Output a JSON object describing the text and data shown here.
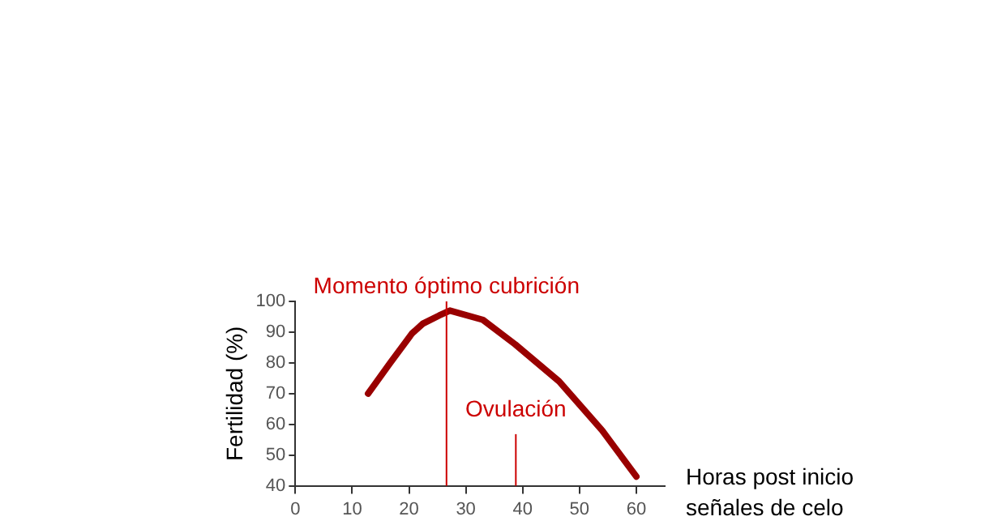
{
  "chart_data": {
    "type": "line",
    "xlabel": "Horas post inicio señales de celo",
    "ylabel": "Fertilidad (%)",
    "series": [
      {
        "color": "#990000",
        "x": [
          12.8,
          16.7,
          20.5,
          22.4,
          25.3,
          27.2,
          33,
          38.7,
          46.4,
          54,
          60
        ],
        "values": [
          70,
          80,
          89.5,
          92.7,
          95.4,
          97,
          94,
          86,
          74,
          58,
          43
        ]
      }
    ],
    "xlim": [
      0,
      65
    ],
    "xticks": [
      0,
      10,
      20,
      30,
      40,
      50,
      60
    ],
    "ylim": [
      40,
      100
    ],
    "yticks": [
      40,
      50,
      60,
      70,
      80,
      90,
      100
    ],
    "grid": false,
    "legend": false,
    "marker": "none",
    "line_style": "solid",
    "ref_lines": [
      {
        "axis": "x",
        "value": 26.6,
        "label": "Momento óptimo cubrición",
        "color": "#cc0000"
      },
      {
        "axis": "x",
        "value": 38.8,
        "label": "Ovulación",
        "color": "#cc0000"
      }
    ]
  }
}
